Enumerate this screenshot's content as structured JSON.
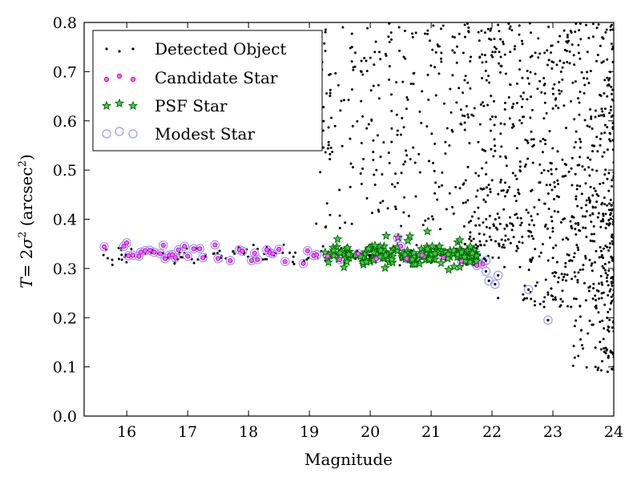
{
  "chart_data": {
    "type": "scatter",
    "xlabel": "Magnitude",
    "ylabel_parts": {
      "T": "T",
      "eq": "= 2",
      "sigma": "σ",
      "sq": "2",
      "unit_open": " (arcsec",
      "unit_sq": "2",
      "unit_close": ")"
    },
    "xlim": [
      15.3,
      24
    ],
    "ylim": [
      0.0,
      0.8
    ],
    "xticks": [
      16,
      17,
      18,
      19,
      20,
      21,
      22,
      23,
      24
    ],
    "yticks": [
      0.0,
      0.1,
      0.2,
      0.3,
      0.4,
      0.5,
      0.6,
      0.7,
      0.8
    ],
    "xtick_labels": [
      "16",
      "17",
      "18",
      "19",
      "20",
      "21",
      "22",
      "23",
      "24"
    ],
    "ytick_labels": [
      "0.0",
      "0.1",
      "0.2",
      "0.3",
      "0.4",
      "0.5",
      "0.6",
      "0.7",
      "0.8"
    ],
    "legend_position": "top-left",
    "series": [
      {
        "name": "Detected Object",
        "marker": "dot",
        "color": "#000000",
        "approx_count": 1400,
        "approx_extent": {
          "x": [
            19.0,
            24.0
          ],
          "y": [
            0.09,
            0.8
          ]
        },
        "sample_points": [
          [
            19.2,
            0.78
          ],
          [
            19.55,
            0.79
          ],
          [
            19.7,
            0.75
          ],
          [
            19.75,
            0.71
          ],
          [
            19.85,
            0.64
          ],
          [
            20.05,
            0.56
          ],
          [
            20.08,
            0.47
          ],
          [
            20.15,
            0.74
          ],
          [
            20.35,
            0.62
          ],
          [
            20.45,
            0.58
          ],
          [
            20.6,
            0.53
          ],
          [
            20.7,
            0.77
          ],
          [
            20.85,
            0.66
          ],
          [
            21.1,
            0.44
          ],
          [
            21.15,
            0.38
          ],
          [
            21.3,
            0.55
          ],
          [
            21.55,
            0.61
          ],
          [
            21.7,
            0.36
          ],
          [
            22.1,
            0.24
          ],
          [
            22.15,
            0.48
          ],
          [
            23.9,
            0.09
          ],
          [
            23.95,
            0.13
          ],
          [
            23.7,
            0.1
          ]
        ]
      },
      {
        "name": "Candidate Star",
        "marker": "circle-magenta",
        "color": "#ff00ff",
        "points": [
          [
            15.63,
            0.344
          ],
          [
            15.95,
            0.345
          ],
          [
            16.0,
            0.352
          ],
          [
            16.03,
            0.326
          ],
          [
            16.1,
            0.327
          ],
          [
            16.2,
            0.325
          ],
          [
            16.23,
            0.333
          ],
          [
            16.3,
            0.336
          ],
          [
            16.38,
            0.337
          ],
          [
            16.45,
            0.333
          ],
          [
            16.55,
            0.33
          ],
          [
            16.6,
            0.347
          ],
          [
            16.63,
            0.32
          ],
          [
            16.7,
            0.327
          ],
          [
            16.75,
            0.328
          ],
          [
            16.8,
            0.322
          ],
          [
            16.85,
            0.338
          ],
          [
            16.95,
            0.345
          ],
          [
            17.0,
            0.325
          ],
          [
            17.1,
            0.34
          ],
          [
            17.2,
            0.34
          ],
          [
            17.25,
            0.322
          ],
          [
            17.45,
            0.348
          ],
          [
            17.5,
            0.32
          ],
          [
            17.7,
            0.316
          ],
          [
            17.85,
            0.338
          ],
          [
            17.9,
            0.335
          ],
          [
            18.05,
            0.316
          ],
          [
            18.1,
            0.331
          ],
          [
            18.15,
            0.318
          ],
          [
            18.3,
            0.338
          ],
          [
            18.35,
            0.332
          ],
          [
            18.4,
            0.33
          ],
          [
            18.5,
            0.339
          ],
          [
            18.6,
            0.314
          ],
          [
            18.9,
            0.31
          ],
          [
            18.97,
            0.336
          ],
          [
            19.07,
            0.326
          ],
          [
            19.12,
            0.328
          ],
          [
            19.3,
            0.325
          ],
          [
            19.5,
            0.318
          ],
          [
            19.8,
            0.33
          ],
          [
            20.1,
            0.32
          ],
          [
            20.45,
            0.362
          ],
          [
            20.5,
            0.345
          ],
          [
            20.6,
            0.32
          ],
          [
            20.85,
            0.327
          ],
          [
            21.2,
            0.322
          ],
          [
            21.5,
            0.315
          ],
          [
            21.75,
            0.306
          ],
          [
            21.85,
            0.309
          ]
        ]
      },
      {
        "name": "PSF Star",
        "marker": "star-green",
        "color": "#00aa00",
        "approx_count": 180,
        "approx_extent": {
          "x": [
            19.2,
            21.8
          ],
          "y": [
            0.3,
            0.375
          ]
        }
      },
      {
        "name": "Modest Star",
        "marker": "circle-open-blue",
        "color": "#8888ff",
        "points": [
          [
            21.9,
            0.316
          ],
          [
            21.9,
            0.294
          ],
          [
            21.95,
            0.275
          ],
          [
            22.05,
            0.268
          ],
          [
            22.1,
            0.286
          ],
          [
            22.6,
            0.257
          ],
          [
            22.92,
            0.195
          ]
        ]
      }
    ]
  }
}
